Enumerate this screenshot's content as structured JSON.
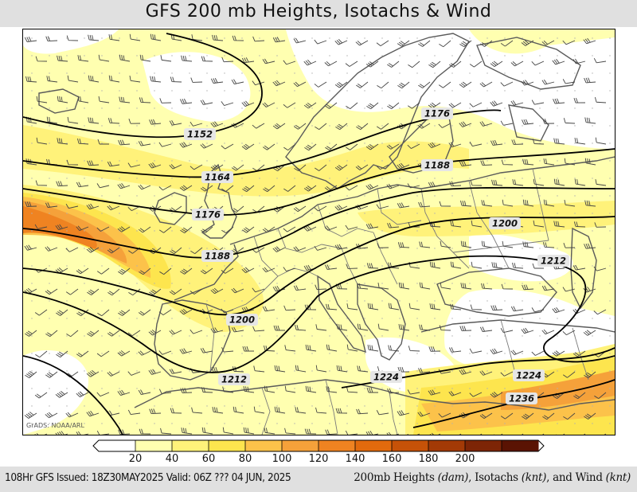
{
  "title": "GFS 200 mb Heights, Isotachs & Wind",
  "credit": "GrADS: NOAA/ARL",
  "legend": {
    "ticks": [
      "20",
      "40",
      "60",
      "80",
      "100",
      "120",
      "140",
      "160",
      "180",
      "200"
    ],
    "colors": [
      "#ffffff",
      "#ffffb0",
      "#fff27a",
      "#fde54e",
      "#fcc24a",
      "#f5a13a",
      "#ef8321",
      "#e26a0d",
      "#c65208",
      "#a33a06",
      "#7d2506",
      "#5a1303"
    ]
  },
  "contours": [
    {
      "label": "1152"
    },
    {
      "label": "1164"
    },
    {
      "label": "1176"
    },
    {
      "label": "1188"
    },
    {
      "label": "1200"
    },
    {
      "label": "1212"
    },
    {
      "label": "1224"
    },
    {
      "label": "1236"
    },
    {
      "label": "1176"
    },
    {
      "label": "1188"
    },
    {
      "label": "1200"
    },
    {
      "label": "1212"
    },
    {
      "label": "1224"
    }
  ],
  "footer": {
    "left": "108Hr GFS Issued: 18Z30MAY2025 Valid: 06Z ??? 04 JUN, 2025",
    "right_main": "200mb Heights ",
    "right_unit1": "(dam)",
    "right_mid": ", Isotachs ",
    "right_unit2": "(knt)",
    "right_end": ", and Wind ",
    "right_unit3": "(knt)"
  }
}
